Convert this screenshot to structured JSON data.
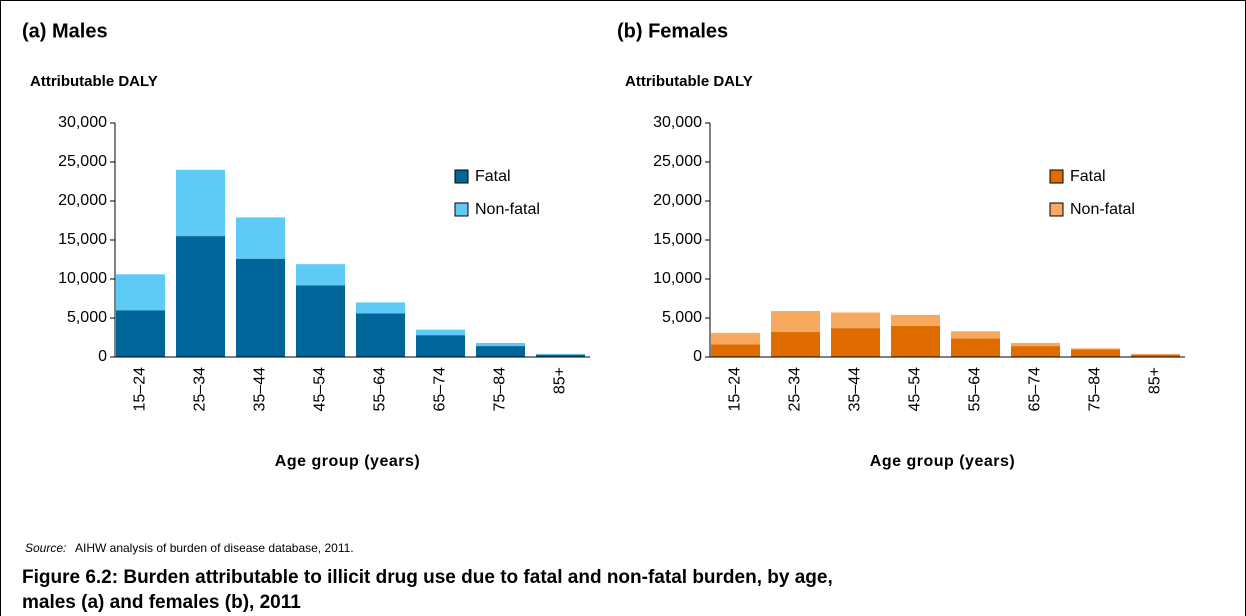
{
  "chart_data": [
    {
      "type": "bar",
      "stacked": true,
      "title": "(a) Males",
      "y_label": "Attributable DALY",
      "x_label": "Age group (years)",
      "categories": [
        "15–24",
        "25–34",
        "35–44",
        "45–54",
        "55–64",
        "65–74",
        "75–84",
        "85+"
      ],
      "series": [
        {
          "name": "Fatal",
          "color": "#00669a",
          "values": [
            6000,
            15500,
            12600,
            9200,
            5600,
            2800,
            1400,
            300
          ]
        },
        {
          "name": "Non-fatal",
          "color": "#5ecbf7",
          "values": [
            4600,
            8500,
            5300,
            2700,
            1400,
            700,
            400,
            100
          ]
        }
      ],
      "ylim": [
        0,
        30000
      ],
      "yticks": [
        0,
        {
          "value": 5000,
          "label": "5,000"
        },
        {
          "value": 10000,
          "label": "10,000"
        },
        {
          "value": 15000,
          "label": "15,000"
        },
        {
          "value": 20000,
          "label": "20,000"
        },
        {
          "value": 25000,
          "label": "25,000"
        },
        {
          "value": 30000,
          "label": "30,000"
        }
      ],
      "legend": "upper right"
    },
    {
      "type": "bar",
      "stacked": true,
      "title": "(b) Females",
      "y_label": "Attributable DALY",
      "x_label": "Age group (years)",
      "categories": [
        "15–24",
        "25–34",
        "35–44",
        "45–54",
        "55–64",
        "65–74",
        "75–84",
        "85+"
      ],
      "series": [
        {
          "name": "Fatal",
          "color": "#e06c00",
          "values": [
            1600,
            3200,
            3700,
            4000,
            2400,
            1400,
            1000,
            300
          ]
        },
        {
          "name": "Non-fatal",
          "color": "#f7a95f",
          "values": [
            1500,
            2700,
            2000,
            1400,
            900,
            400,
            100,
            100
          ]
        }
      ],
      "ylim": [
        0,
        30000
      ],
      "yticks": [
        0,
        {
          "value": 5000,
          "label": "5,000"
        },
        {
          "value": 10000,
          "label": "10,000"
        },
        {
          "value": 15000,
          "label": "15,000"
        },
        {
          "value": 20000,
          "label": "20,000"
        },
        {
          "value": 25000,
          "label": "25,000"
        },
        {
          "value": 30000,
          "label": "30,000"
        }
      ],
      "legend": "upper right"
    }
  ],
  "source_label": "Source:",
  "source": "AIHW analysis of burden of disease database, 2011.",
  "caption": "Figure 6.2: Burden attributable to illicit drug use due to fatal and non-fatal burden, by age, males (a) and females (b), 2011"
}
